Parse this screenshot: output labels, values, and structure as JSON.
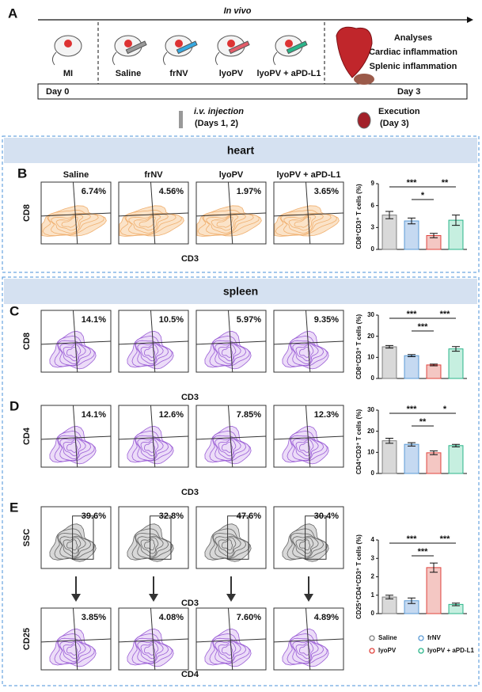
{
  "panel_a": {
    "letter": "A",
    "title": "In vivo",
    "groups": [
      "MI",
      "Saline",
      "frNV",
      "lyoPV",
      "lyoPV + aPD-L1"
    ],
    "analyses": [
      "Analyses",
      "Cardiac inflammation",
      "Splenic inflammation"
    ],
    "day_start": "Day 0",
    "day_end": "Day 3",
    "injection": [
      "i.v. injection",
      "(Days 1, 2)"
    ],
    "execution": [
      "Execution",
      "(Day 3)"
    ]
  },
  "heart": {
    "header": "heart",
    "letter": "B",
    "columns": [
      "Saline",
      "frNV",
      "lyoPV",
      "lyoPV + aPD-L1"
    ],
    "y_axis": "CD8",
    "x_axis": "CD3",
    "percentages": [
      "6.74%",
      "4.56%",
      "1.97%",
      "3.65%"
    ]
  },
  "spleen": {
    "header": "spleen",
    "rows": [
      {
        "letter": "C",
        "y_axis": "CD8",
        "x_axis": "CD3",
        "percentages": [
          "14.1%",
          "10.5%",
          "5.97%",
          "9.35%"
        ]
      },
      {
        "letter": "D",
        "y_axis": "CD4",
        "x_axis": "CD3",
        "percentages": [
          "14.1%",
          "12.6%",
          "7.85%",
          "12.3%"
        ]
      },
      {
        "letter": "E",
        "y_axis": "SSC",
        "x_axis": "CD3",
        "percentages": [
          "39.6%",
          "32.8%",
          "47.6%",
          "30.4%"
        ],
        "y_axis_2": "CD25",
        "x_axis_2": "CD4",
        "percentages_2": [
          "3.85%",
          "4.08%",
          "7.60%",
          "4.89%"
        ]
      }
    ]
  },
  "legend": [
    {
      "name": "Saline",
      "color": "#7f7f7f"
    },
    {
      "name": "frNV",
      "color": "#5b9bd5"
    },
    {
      "name": "lyoPV",
      "color": "#e0443e"
    },
    {
      "name": "lyoPV + aPD-L1",
      "color": "#2bb58a"
    }
  ],
  "chart_data": [
    {
      "type": "bar",
      "y_label": "CD8⁺CD3⁺ T cells (%)",
      "categories": [
        null,
        null,
        null,
        null
      ],
      "values": [
        4.7,
        3.9,
        1.9,
        4.0
      ],
      "errors": [
        0.5,
        0.4,
        0.3,
        0.7
      ],
      "colors": [
        "#d9d9d9",
        "#c5d9f1",
        "#f4c7c3",
        "#c6efe0"
      ],
      "ylim": [
        0,
        9
      ],
      "yticks": [
        0,
        3,
        6,
        9
      ],
      "significance": [
        "***",
        "**",
        "*"
      ]
    },
    {
      "type": "bar",
      "y_label": "CD8⁺CD3⁺ T cells (%)",
      "categories": [
        null,
        null,
        null,
        null
      ],
      "values": [
        15.0,
        10.8,
        6.4,
        14.0
      ],
      "errors": [
        0.6,
        0.5,
        0.4,
        1.1
      ],
      "colors": [
        "#d9d9d9",
        "#c5d9f1",
        "#f4c7c3",
        "#c6efe0"
      ],
      "ylim": [
        0,
        30
      ],
      "yticks": [
        0,
        10,
        20,
        30
      ],
      "significance": [
        "***",
        "***",
        "***"
      ]
    },
    {
      "type": "bar",
      "y_label": "CD4⁺CD3⁺ T cells (%)",
      "categories": [
        null,
        null,
        null,
        null
      ],
      "values": [
        15.5,
        13.8,
        9.8,
        13.2
      ],
      "errors": [
        1.2,
        0.8,
        0.9,
        0.6
      ],
      "colors": [
        "#d9d9d9",
        "#c5d9f1",
        "#f4c7c3",
        "#c6efe0"
      ],
      "ylim": [
        0,
        30
      ],
      "yticks": [
        0,
        10,
        20,
        30
      ],
      "significance": [
        "***",
        "*",
        "**"
      ]
    },
    {
      "type": "bar",
      "y_label": "CD25⁺CD4⁺CD3⁺ T cells (%)",
      "categories": [
        null,
        null,
        null,
        null
      ],
      "values": [
        0.9,
        0.7,
        2.5,
        0.5
      ],
      "errors": [
        0.1,
        0.15,
        0.25,
        0.07
      ],
      "colors": [
        "#d9d9d9",
        "#c5d9f1",
        "#f4c7c3",
        "#c6efe0"
      ],
      "ylim": [
        0,
        4
      ],
      "yticks": [
        0,
        1,
        2,
        3,
        4
      ],
      "significance": [
        "***",
        "***",
        "***"
      ]
    }
  ]
}
